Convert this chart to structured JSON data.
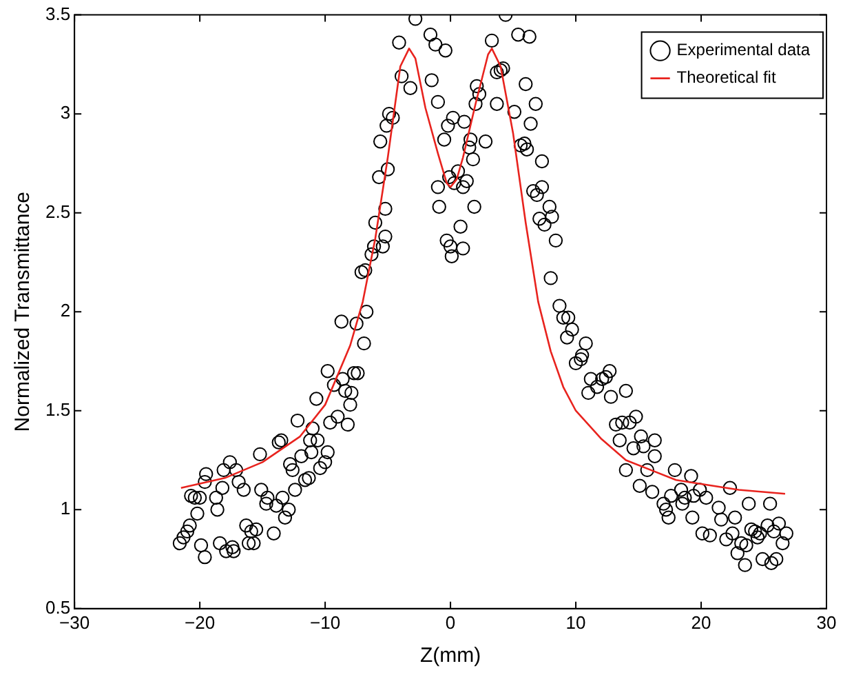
{
  "chart_data": {
    "type": "scatter",
    "xlabel": "Z(mm)",
    "ylabel": "Normalized Transmittance",
    "xlim": [
      -30,
      30
    ],
    "xticks": [
      -30,
      -20,
      -10,
      0,
      10,
      20,
      30
    ],
    "ylim": [
      0.5,
      3.5
    ],
    "yticks": [
      0.5,
      1,
      1.5,
      2,
      2.5,
      3,
      3.5
    ],
    "grid": false,
    "legend": "top right",
    "series": [
      {
        "name": "Experimental data",
        "color": "#000000",
        "marker": "circle",
        "x": [
          -21.6,
          -21.3,
          -21.0,
          -20.8,
          -20.7,
          -20.4,
          -20.2,
          -20.0,
          -19.9,
          -19.6,
          -19.6,
          -19.5,
          -18.7,
          -18.6,
          -18.4,
          -18.2,
          -18.1,
          -17.9,
          -17.6,
          -17.4,
          -17.3,
          -17.1,
          -16.9,
          -16.5,
          -16.3,
          -16.1,
          -15.9,
          -15.7,
          -15.5,
          -15.2,
          -15.1,
          -14.7,
          -14.6,
          -14.1,
          -13.9,
          -13.7,
          -13.5,
          -13.4,
          -13.2,
          -12.9,
          -12.8,
          -12.6,
          -12.4,
          -12.2,
          -11.9,
          -11.6,
          -11.3,
          -11.2,
          -11.1,
          -11.0,
          -10.7,
          -10.6,
          -10.4,
          -10.0,
          -9.8,
          -9.8,
          -9.6,
          -9.3,
          -9.0,
          -8.7,
          -8.6,
          -8.4,
          -8.2,
          -8.0,
          -7.9,
          -7.7,
          -7.5,
          -7.4,
          -7.1,
          -6.9,
          -6.8,
          -6.7,
          -6.3,
          -6.1,
          -6.0,
          -5.7,
          -5.6,
          -5.4,
          -5.2,
          -5.2,
          -5.0,
          -5.1,
          -4.9,
          -4.6,
          -4.1,
          -3.9,
          -3.2,
          -2.8,
          -1.6,
          -1.5,
          -1.2,
          -1.0,
          -1.0,
          -0.9,
          -0.5,
          -0.4,
          -0.3,
          -0.2,
          -0.1,
          0.0,
          0.1,
          0.2,
          0.3,
          0.6,
          0.8,
          1.0,
          1.0,
          1.1,
          1.3,
          1.5,
          1.6,
          1.8,
          1.9,
          2.0,
          2.1,
          2.3,
          2.8,
          3.3,
          3.7,
          3.7,
          4.0,
          4.2,
          4.4,
          5.1,
          5.4,
          5.6,
          5.9,
          6.0,
          6.1,
          6.3,
          6.4,
          6.6,
          6.8,
          6.9,
          7.1,
          7.3,
          7.3,
          7.5,
          7.9,
          8.1,
          8.0,
          8.4,
          8.7,
          9.0,
          9.3,
          9.4,
          9.7,
          10.0,
          10.4,
          10.5,
          10.8,
          11.0,
          11.2,
          11.7,
          12.1,
          12.4,
          12.7,
          12.8,
          13.2,
          13.5,
          13.7,
          14.0,
          14.0,
          14.3,
          14.6,
          14.8,
          15.1,
          15.2,
          15.4,
          15.7,
          16.1,
          16.3,
          16.3,
          17.0,
          17.2,
          17.4,
          17.6,
          17.9,
          18.4,
          18.5,
          18.7,
          19.2,
          19.3,
          19.4,
          19.9,
          20.1,
          20.4,
          20.7,
          21.4,
          21.6,
          22.0,
          22.3,
          22.5,
          22.7,
          22.9,
          23.2,
          23.5,
          23.6,
          23.8,
          24.0,
          24.3,
          24.5,
          24.7,
          24.9,
          25.3,
          25.5,
          25.6,
          25.8,
          26.0,
          26.2,
          26.5,
          26.8
        ],
        "values": [
          0.83,
          0.86,
          0.89,
          0.92,
          1.07,
          1.06,
          0.98,
          1.06,
          0.82,
          0.76,
          1.14,
          1.18,
          1.06,
          1.0,
          0.83,
          1.11,
          1.2,
          0.79,
          1.24,
          0.81,
          0.79,
          1.2,
          1.14,
          1.1,
          0.92,
          0.83,
          0.89,
          0.83,
          0.9,
          1.28,
          1.1,
          1.03,
          1.06,
          0.88,
          1.02,
          1.34,
          1.35,
          1.06,
          0.96,
          1.0,
          1.23,
          1.2,
          1.1,
          1.45,
          1.27,
          1.15,
          1.16,
          1.35,
          1.29,
          1.41,
          1.56,
          1.35,
          1.21,
          1.24,
          1.29,
          1.7,
          1.44,
          1.63,
          1.47,
          1.95,
          1.66,
          1.6,
          1.43,
          1.53,
          1.59,
          1.69,
          1.94,
          1.69,
          2.2,
          1.84,
          2.21,
          2.0,
          2.29,
          2.33,
          2.45,
          2.68,
          2.86,
          2.33,
          2.52,
          2.38,
          2.72,
          2.94,
          3.0,
          2.98,
          3.36,
          3.19,
          3.13,
          3.48,
          3.4,
          3.17,
          3.35,
          3.06,
          2.63,
          2.53,
          2.87,
          3.32,
          2.36,
          2.94,
          2.68,
          2.33,
          2.28,
          2.98,
          2.65,
          2.71,
          2.43,
          2.63,
          2.32,
          2.96,
          2.66,
          2.83,
          2.87,
          2.77,
          2.53,
          3.05,
          3.14,
          3.1,
          2.86,
          3.37,
          3.05,
          3.21,
          3.22,
          3.23,
          3.5,
          3.01,
          3.4,
          2.84,
          2.85,
          3.15,
          2.82,
          3.39,
          2.95,
          2.61,
          3.05,
          2.59,
          2.47,
          2.63,
          2.76,
          2.44,
          2.53,
          2.48,
          2.17,
          2.36,
          2.03,
          1.97,
          1.87,
          1.97,
          1.91,
          1.74,
          1.76,
          1.78,
          1.84,
          1.59,
          1.66,
          1.62,
          1.66,
          1.67,
          1.7,
          1.57,
          1.43,
          1.35,
          1.44,
          1.6,
          1.2,
          1.44,
          1.31,
          1.47,
          1.12,
          1.37,
          1.32,
          1.2,
          1.09,
          1.35,
          1.27,
          1.03,
          1.0,
          0.96,
          1.07,
          1.2,
          1.1,
          1.03,
          1.06,
          1.17,
          0.96,
          1.07,
          1.1,
          0.88,
          1.06,
          0.87,
          1.01,
          0.95,
          0.85,
          1.11,
          0.88,
          0.96,
          0.78,
          0.83,
          0.72,
          0.82,
          1.03,
          0.9,
          0.89,
          0.86,
          0.88,
          0.75,
          0.92,
          1.03,
          0.73,
          0.89,
          0.75,
          0.93,
          0.83,
          0.88
        ]
      },
      {
        "name": "Theoretical fit",
        "type": "line",
        "color": "#e8231e",
        "marker": "none",
        "line_style": "solid",
        "x": [
          -21.5,
          -18,
          -15,
          -12,
          -10,
          -8,
          -7,
          -6,
          -5,
          -4,
          -3.3,
          -2.8,
          -2,
          -1,
          -0.3,
          0,
          0.5,
          1,
          2,
          3,
          3.3,
          4,
          5,
          6,
          7,
          8,
          9,
          10,
          12,
          14,
          16,
          18,
          20,
          23,
          26.7
        ],
        "values": [
          1.11,
          1.16,
          1.24,
          1.37,
          1.53,
          1.83,
          2.05,
          2.37,
          2.78,
          3.24,
          3.33,
          3.28,
          3.03,
          2.8,
          2.65,
          2.63,
          2.67,
          2.78,
          3.05,
          3.3,
          3.33,
          3.24,
          2.9,
          2.45,
          2.05,
          1.8,
          1.62,
          1.5,
          1.36,
          1.25,
          1.2,
          1.15,
          1.13,
          1.1,
          1.08
        ]
      }
    ]
  }
}
